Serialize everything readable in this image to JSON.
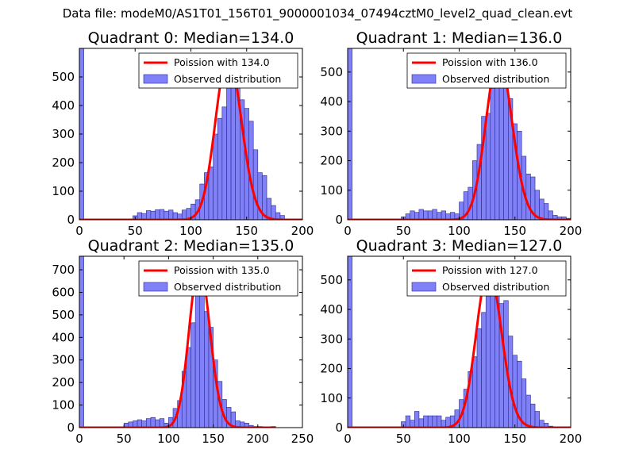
{
  "figure": {
    "suptitle": "Data file: modeM0/AS1T01_156T01_9000001034_07494cztM0_level2_quad_clean.evt"
  },
  "chart_data": [
    {
      "type": "bar",
      "title": "Quadrant 0: Median=134.0",
      "xlim": [
        0,
        200
      ],
      "ylim": [
        0,
        600
      ],
      "xticks": [
        0,
        50,
        100,
        150,
        200
      ],
      "yticks": [
        0,
        100,
        200,
        300,
        400,
        500
      ],
      "legend": [
        "Poission with 134.0",
        "Observed distribution"
      ],
      "poisson_mean": 134.0,
      "poisson_peak": 575,
      "bin_width": 4,
      "bins": [
        [
          0,
          600
        ],
        [
          4,
          0
        ],
        [
          8,
          0
        ],
        [
          12,
          0
        ],
        [
          16,
          0
        ],
        [
          20,
          0
        ],
        [
          24,
          0
        ],
        [
          28,
          0
        ],
        [
          32,
          0
        ],
        [
          36,
          0
        ],
        [
          40,
          0
        ],
        [
          44,
          0
        ],
        [
          48,
          14
        ],
        [
          52,
          25
        ],
        [
          56,
          22
        ],
        [
          60,
          32
        ],
        [
          64,
          30
        ],
        [
          68,
          35
        ],
        [
          72,
          36
        ],
        [
          76,
          30
        ],
        [
          80,
          34
        ],
        [
          84,
          25
        ],
        [
          88,
          20
        ],
        [
          92,
          34
        ],
        [
          96,
          40
        ],
        [
          100,
          55
        ],
        [
          104,
          70
        ],
        [
          108,
          125
        ],
        [
          112,
          165
        ],
        [
          116,
          185
        ],
        [
          120,
          300
        ],
        [
          124,
          355
        ],
        [
          128,
          395
        ],
        [
          132,
          520
        ],
        [
          136,
          520
        ],
        [
          140,
          560
        ],
        [
          144,
          420
        ],
        [
          148,
          390
        ],
        [
          152,
          345
        ],
        [
          156,
          245
        ],
        [
          160,
          165
        ],
        [
          164,
          155
        ],
        [
          168,
          75
        ],
        [
          172,
          50
        ],
        [
          176,
          25
        ],
        [
          180,
          15
        ],
        [
          184,
          0
        ],
        [
          188,
          0
        ],
        [
          192,
          0
        ],
        [
          196,
          0
        ]
      ]
    },
    {
      "type": "bar",
      "title": "Quadrant 1: Median=136.0",
      "xlim": [
        0,
        200
      ],
      "ylim": [
        0,
        580
      ],
      "xticks": [
        0,
        50,
        100,
        150,
        200
      ],
      "yticks": [
        0,
        100,
        200,
        300,
        400,
        500
      ],
      "legend": [
        "Poission with 136.0",
        "Observed distribution"
      ],
      "poisson_mean": 136.0,
      "poisson_peak": 550,
      "bin_width": 4,
      "bins": [
        [
          0,
          580
        ],
        [
          4,
          0
        ],
        [
          8,
          0
        ],
        [
          12,
          0
        ],
        [
          16,
          0
        ],
        [
          20,
          0
        ],
        [
          24,
          0
        ],
        [
          28,
          0
        ],
        [
          32,
          0
        ],
        [
          36,
          0
        ],
        [
          40,
          0
        ],
        [
          44,
          0
        ],
        [
          48,
          10
        ],
        [
          52,
          20
        ],
        [
          56,
          30
        ],
        [
          60,
          25
        ],
        [
          64,
          35
        ],
        [
          68,
          30
        ],
        [
          72,
          30
        ],
        [
          76,
          35
        ],
        [
          80,
          25
        ],
        [
          84,
          30
        ],
        [
          88,
          20
        ],
        [
          92,
          25
        ],
        [
          96,
          20
        ],
        [
          100,
          60
        ],
        [
          104,
          95
        ],
        [
          108,
          110
        ],
        [
          112,
          200
        ],
        [
          116,
          255
        ],
        [
          120,
          350
        ],
        [
          124,
          360
        ],
        [
          128,
          445
        ],
        [
          132,
          455
        ],
        [
          136,
          515
        ],
        [
          140,
          495
        ],
        [
          144,
          410
        ],
        [
          148,
          325
        ],
        [
          152,
          300
        ],
        [
          156,
          215
        ],
        [
          160,
          155
        ],
        [
          164,
          145
        ],
        [
          168,
          100
        ],
        [
          172,
          70
        ],
        [
          176,
          55
        ],
        [
          180,
          30
        ],
        [
          184,
          15
        ],
        [
          188,
          10
        ],
        [
          192,
          10
        ],
        [
          196,
          5
        ]
      ]
    },
    {
      "type": "bar",
      "title": "Quadrant 2: Median=135.0",
      "xlim": [
        0,
        250
      ],
      "ylim": [
        0,
        760
      ],
      "xticks": [
        0,
        50,
        100,
        150,
        200,
        250
      ],
      "yticks": [
        0,
        100,
        200,
        300,
        400,
        500,
        600,
        700
      ],
      "legend": [
        "Poission with 135.0",
        "Observed distribution"
      ],
      "poisson_mean": 135.0,
      "poisson_peak": 720,
      "bin_width": 5,
      "bins": [
        [
          0,
          760
        ],
        [
          5,
          0
        ],
        [
          10,
          0
        ],
        [
          15,
          0
        ],
        [
          20,
          0
        ],
        [
          25,
          0
        ],
        [
          30,
          0
        ],
        [
          35,
          0
        ],
        [
          40,
          0
        ],
        [
          45,
          0
        ],
        [
          50,
          20
        ],
        [
          55,
          25
        ],
        [
          60,
          30
        ],
        [
          65,
          35
        ],
        [
          70,
          30
        ],
        [
          75,
          40
        ],
        [
          80,
          45
        ],
        [
          85,
          35
        ],
        [
          90,
          40
        ],
        [
          95,
          20
        ],
        [
          100,
          45
        ],
        [
          105,
          85
        ],
        [
          110,
          120
        ],
        [
          115,
          250
        ],
        [
          120,
          355
        ],
        [
          125,
          465
        ],
        [
          130,
          630
        ],
        [
          135,
          640
        ],
        [
          140,
          515
        ],
        [
          145,
          445
        ],
        [
          150,
          300
        ],
        [
          155,
          205
        ],
        [
          160,
          125
        ],
        [
          165,
          90
        ],
        [
          170,
          70
        ],
        [
          175,
          30
        ],
        [
          180,
          25
        ],
        [
          185,
          20
        ],
        [
          190,
          10
        ],
        [
          195,
          5
        ],
        [
          200,
          5
        ],
        [
          205,
          0
        ],
        [
          210,
          0
        ],
        [
          215,
          5
        ],
        [
          220,
          0
        ],
        [
          225,
          0
        ],
        [
          230,
          0
        ],
        [
          235,
          0
        ],
        [
          240,
          0
        ],
        [
          245,
          0
        ]
      ]
    },
    {
      "type": "bar",
      "title": "Quadrant 3: Median=127.0",
      "xlim": [
        0,
        200
      ],
      "ylim": [
        0,
        580
      ],
      "xticks": [
        0,
        50,
        100,
        150,
        200
      ],
      "yticks": [
        0,
        100,
        200,
        300,
        400,
        500
      ],
      "legend": [
        "Poission with 127.0",
        "Observed distribution"
      ],
      "poisson_mean": 127.0,
      "poisson_peak": 535,
      "bin_width": 4,
      "bins": [
        [
          0,
          580
        ],
        [
          4,
          0
        ],
        [
          8,
          0
        ],
        [
          12,
          0
        ],
        [
          16,
          0
        ],
        [
          20,
          0
        ],
        [
          24,
          0
        ],
        [
          28,
          0
        ],
        [
          32,
          0
        ],
        [
          36,
          0
        ],
        [
          40,
          0
        ],
        [
          44,
          0
        ],
        [
          48,
          20
        ],
        [
          52,
          40
        ],
        [
          56,
          25
        ],
        [
          60,
          55
        ],
        [
          64,
          30
        ],
        [
          68,
          40
        ],
        [
          72,
          40
        ],
        [
          76,
          40
        ],
        [
          80,
          40
        ],
        [
          84,
          25
        ],
        [
          88,
          35
        ],
        [
          92,
          40
        ],
        [
          96,
          60
        ],
        [
          100,
          95
        ],
        [
          104,
          130
        ],
        [
          108,
          190
        ],
        [
          112,
          240
        ],
        [
          116,
          335
        ],
        [
          120,
          390
        ],
        [
          124,
          445
        ],
        [
          128,
          490
        ],
        [
          132,
          475
        ],
        [
          136,
          420
        ],
        [
          140,
          430
        ],
        [
          144,
          310
        ],
        [
          148,
          245
        ],
        [
          152,
          225
        ],
        [
          156,
          165
        ],
        [
          160,
          110
        ],
        [
          164,
          80
        ],
        [
          168,
          55
        ],
        [
          172,
          25
        ],
        [
          176,
          15
        ],
        [
          180,
          5
        ],
        [
          184,
          0
        ],
        [
          188,
          0
        ],
        [
          192,
          0
        ],
        [
          196,
          0
        ]
      ]
    }
  ],
  "colors": {
    "bar_fill": "#8080f8",
    "bar_edge": "#2a2a8a",
    "poisson_line": "#ff0000"
  }
}
